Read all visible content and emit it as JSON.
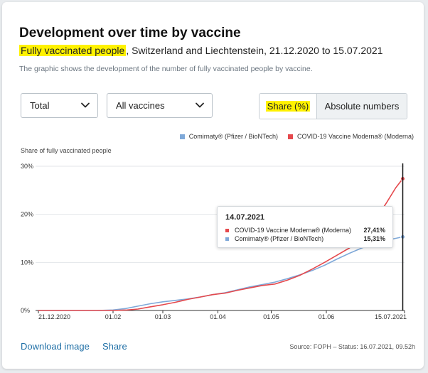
{
  "title": "Development over time by vaccine",
  "subtitle": {
    "highlight": "Fully vaccinated people",
    "rest": ", Switzerland and Liechtenstein, 21.12.2020 to 15.07.2021"
  },
  "description": "The graphic shows the development of the number of fully vaccinated people by vaccine.",
  "controls": {
    "select_total": "Total",
    "select_vaccines": "All vaccines",
    "toggle_share": "Share (%)",
    "toggle_absolute": "Absolute numbers"
  },
  "colors": {
    "moderna": "#e5494d",
    "pfizer": "#7fa9d9",
    "highlight": "#fff200",
    "link": "#1f6fa6"
  },
  "legend": {
    "pfizer": "Comirnaty® (Pfizer / BioNTech)",
    "moderna": "COVID-19 Vaccine Moderna® (Moderna)"
  },
  "tooltip": {
    "date": "14.07.2021",
    "moderna_label": "COVID-19 Vaccine Moderna® (Moderna)",
    "moderna_value": "27,41%",
    "pfizer_label": "Comirnaty® (Pfizer / BioNTech)",
    "pfizer_value": "15,31%"
  },
  "footer": {
    "download": "Download image",
    "share": "Share",
    "source": "Source: FOPH – Status: 16.07.2021, 09.52h"
  },
  "chart_data": {
    "type": "line",
    "ylabel": "Share of fully vaccinated people",
    "xlabel": "",
    "ylim": [
      0,
      30
    ],
    "y_ticks": [
      "0%",
      "10%",
      "20%",
      "30%"
    ],
    "y_tick_values": [
      0,
      10,
      20,
      30
    ],
    "x_range_days": [
      0,
      206
    ],
    "x_ticks": [
      {
        "label": "21.12.2020",
        "day": 0
      },
      {
        "label": "01.02",
        "day": 42
      },
      {
        "label": "01.03",
        "day": 70
      },
      {
        "label": "01.04",
        "day": 101
      },
      {
        "label": "01.05",
        "day": 131
      },
      {
        "label": "01.06",
        "day": 162
      },
      {
        "label": "15.07.2021",
        "day": 206
      }
    ],
    "series": [
      {
        "name": "COVID-19 Vaccine Moderna® (Moderna)",
        "color_key": "moderna",
        "points": [
          [
            0,
            0
          ],
          [
            30,
            0
          ],
          [
            42,
            0
          ],
          [
            50,
            0.1
          ],
          [
            56,
            0.3
          ],
          [
            62,
            0.7
          ],
          [
            70,
            1.2
          ],
          [
            77,
            1.7
          ],
          [
            84,
            2.3
          ],
          [
            91,
            2.8
          ],
          [
            98,
            3.3
          ],
          [
            105,
            3.6
          ],
          [
            112,
            4.2
          ],
          [
            119,
            4.7
          ],
          [
            126,
            5.2
          ],
          [
            133,
            5.5
          ],
          [
            140,
            6.3
          ],
          [
            147,
            7.3
          ],
          [
            154,
            8.6
          ],
          [
            161,
            10.0
          ],
          [
            168,
            11.5
          ],
          [
            175,
            13.0
          ],
          [
            182,
            15.0
          ],
          [
            189,
            18.5
          ],
          [
            196,
            22.5
          ],
          [
            201,
            25.5
          ],
          [
            205,
            27.41
          ]
        ]
      },
      {
        "name": "Comirnaty® (Pfizer / BioNTech)",
        "color_key": "pfizer",
        "points": [
          [
            0,
            0
          ],
          [
            33,
            0
          ],
          [
            42,
            0.1
          ],
          [
            49,
            0.4
          ],
          [
            56,
            0.9
          ],
          [
            63,
            1.4
          ],
          [
            70,
            1.8
          ],
          [
            77,
            2.1
          ],
          [
            84,
            2.4
          ],
          [
            91,
            2.8
          ],
          [
            98,
            3.3
          ],
          [
            105,
            3.7
          ],
          [
            112,
            4.3
          ],
          [
            119,
            4.9
          ],
          [
            126,
            5.4
          ],
          [
            133,
            5.9
          ],
          [
            140,
            6.6
          ],
          [
            147,
            7.4
          ],
          [
            154,
            8.3
          ],
          [
            161,
            9.4
          ],
          [
            168,
            10.7
          ],
          [
            175,
            11.9
          ],
          [
            182,
            13.0
          ],
          [
            189,
            13.9
          ],
          [
            196,
            14.6
          ],
          [
            201,
            15.0
          ],
          [
            205,
            15.31
          ]
        ]
      }
    ],
    "highlight_day": 205
  }
}
